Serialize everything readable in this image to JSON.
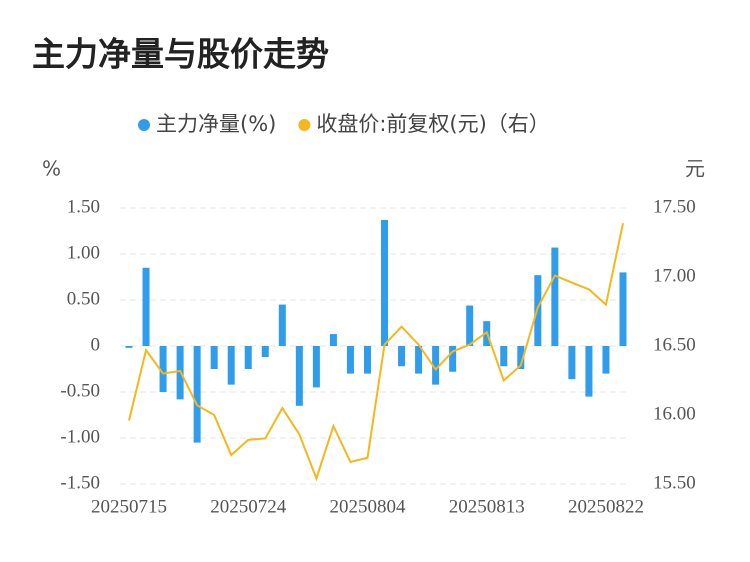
{
  "chart_data": {
    "type": "bar_line",
    "title": "主力净量与股价走势",
    "y_label": "%",
    "y2_label": "元",
    "categories": [
      "20250715",
      null,
      null,
      null,
      null,
      null,
      null,
      "20250724",
      null,
      null,
      null,
      null,
      null,
      null,
      "20250804",
      null,
      null,
      null,
      null,
      null,
      null,
      "20250813",
      null,
      null,
      null,
      null,
      null,
      null,
      "20250822",
      null
    ],
    "series": [
      {
        "name": "主力净量(%)",
        "type": "bar",
        "color": "#2f9cec",
        "values": [
          -0.02,
          0.85,
          -0.5,
          -0.58,
          -1.05,
          -0.25,
          -0.42,
          -0.25,
          -0.12,
          0.45,
          -0.65,
          -0.45,
          0.13,
          -0.3,
          -0.3,
          1.37,
          -0.22,
          -0.3,
          -0.42,
          -0.28,
          0.44,
          0.27,
          -0.22,
          -0.25,
          0.77,
          1.07,
          -0.36,
          -0.55,
          -0.3,
          0.8
        ]
      },
      {
        "name": "收盘价:前复权(元)（右）",
        "type": "line",
        "axis": "y2",
        "color": "#f5b81c",
        "values": [
          15.96,
          16.47,
          16.3,
          16.32,
          16.07,
          16.0,
          15.71,
          15.82,
          15.83,
          16.05,
          15.86,
          15.54,
          15.92,
          15.66,
          15.69,
          16.51,
          16.64,
          16.51,
          16.33,
          16.46,
          16.51,
          16.6,
          16.25,
          16.36,
          16.78,
          17.01,
          16.96,
          16.91,
          16.8,
          17.39
        ]
      }
    ],
    "ylim": [
      -1.5,
      1.5
    ],
    "yticks": [
      {
        "value": -1.5,
        "label": "-1.50"
      },
      {
        "value": -1,
        "label": "-1.00"
      },
      {
        "value": -0.5,
        "label": "-0.50"
      },
      0,
      {
        "value": 0.5,
        "label": "0.50"
      },
      {
        "value": 1,
        "label": "1.00"
      },
      {
        "value": 1.5,
        "label": "1.50"
      }
    ],
    "y2lim": [
      15.5,
      17.5
    ],
    "y2ticks": [
      {
        "value": 15.5,
        "label": "15.50"
      },
      {
        "value": 16,
        "label": "16.00"
      },
      {
        "value": 16.5,
        "label": "16.50"
      },
      {
        "value": 17,
        "label": "17.00"
      },
      {
        "value": 17.5,
        "label": "17.50"
      }
    ],
    "grid": true
  }
}
